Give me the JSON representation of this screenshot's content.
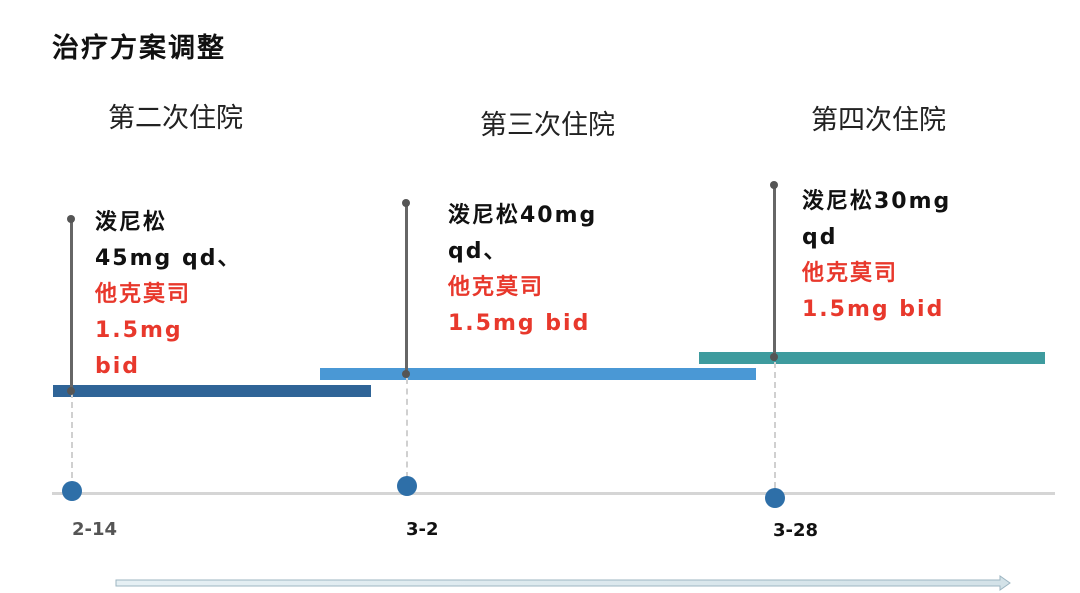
{
  "title": "治疗方案调整",
  "colors": {
    "bar1": "#2f6497",
    "bar2": "#4a98d5",
    "bar3": "#3e9b9e",
    "red_text": "#e8382c",
    "timeline_dot": "#2e6fa8"
  },
  "phases": [
    {
      "label": "第二次住院",
      "date": "2-14",
      "date_color": "#555555",
      "medication_lines": [
        {
          "text": "泼尼松"
        },
        {
          "text": "45mg qd、"
        },
        {
          "text": "他克莫司",
          "highlight": true
        },
        {
          "text": "1.5mg",
          "highlight": true
        },
        {
          "text": "bid",
          "highlight": true
        }
      ]
    },
    {
      "label": "第三次住院",
      "date": "3-2",
      "date_color": "#111111",
      "medication_lines": [
        {
          "text": "泼尼松40mg"
        },
        {
          "text": "qd、"
        },
        {
          "text": "他克莫司",
          "highlight": true
        },
        {
          "text": "1.5mg bid",
          "highlight": true
        }
      ]
    },
    {
      "label": "第四次住院",
      "date": "3-28",
      "date_color": "#111111",
      "medication_lines": [
        {
          "text": "泼尼松30mg"
        },
        {
          "text": "qd"
        },
        {
          "text": "他克莫司",
          "highlight": true
        },
        {
          "text": "1.5mg bid",
          "highlight": true
        }
      ]
    }
  ]
}
